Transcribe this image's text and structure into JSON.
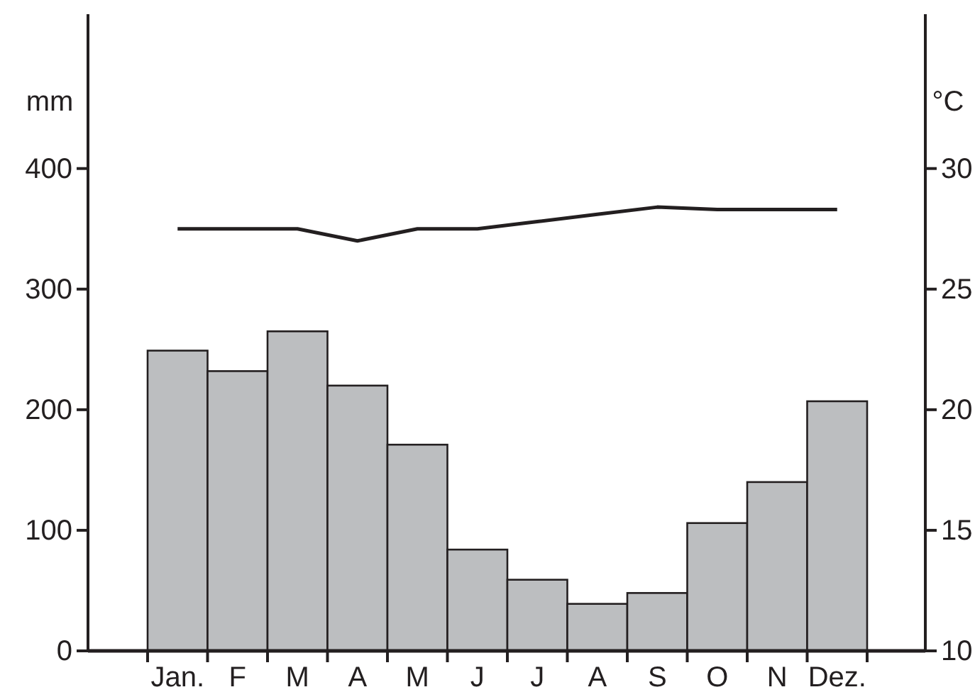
{
  "chart_data": {
    "type": "bar",
    "ylabel": "mm",
    "y2label": "°C",
    "categories": [
      "Jan.",
      "F",
      "M",
      "A",
      "M",
      "J",
      "J",
      "A",
      "S",
      "O",
      "N",
      "Dez."
    ],
    "series": [
      {
        "color": "#bcbec0",
        "values": [
          249,
          232,
          265,
          220,
          171,
          84,
          59,
          39,
          48,
          106,
          140,
          207
        ]
      },
      {
        "type": "line",
        "axis": "y2",
        "color": "#231f20",
        "values": [
          27.5,
          27.5,
          27.5,
          27.0,
          27.5,
          27.5,
          27.8,
          28.1,
          28.4,
          28.3,
          28.3,
          28.3
        ]
      }
    ],
    "ylim": [
      0,
      528
    ],
    "yticks": [
      0,
      100,
      200,
      300,
      400
    ],
    "y2lim": [
      10,
      36.4
    ],
    "y2ticks": [
      10,
      15,
      20,
      25,
      30
    ],
    "grid": false,
    "marker": "none",
    "line_style": "solid"
  }
}
